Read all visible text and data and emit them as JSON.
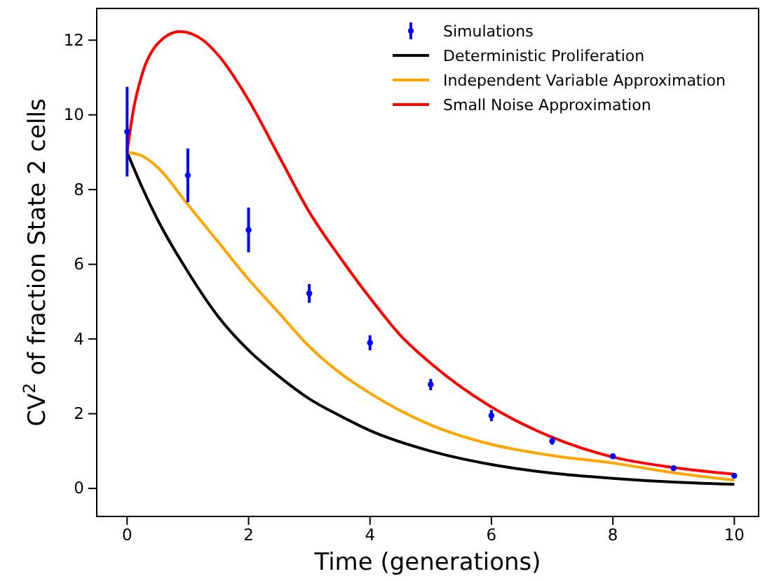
{
  "chart_data": {
    "type": "line",
    "xlabel": "Time (generations)",
    "ylabel": "CV$^{2}$ of fraction State 2 cells",
    "xlim": [
      -0.5,
      10.4
    ],
    "ylim": [
      -0.75,
      12.85
    ],
    "xticks": [
      0,
      2,
      4,
      6,
      8,
      10
    ],
    "yticks": [
      0,
      2,
      4,
      6,
      8,
      10,
      12
    ],
    "grid": false,
    "legend": "top right",
    "series": [
      {
        "name": "Simulations",
        "type": "scatter",
        "marker": "circle",
        "color": "#0000ff",
        "x": [
          0,
          1,
          2,
          3,
          4,
          5,
          6,
          7,
          8,
          9,
          10
        ],
        "values": [
          9.55,
          8.38,
          6.92,
          5.22,
          3.9,
          2.78,
          1.95,
          1.27,
          0.86,
          0.54,
          0.34
        ],
        "errors": [
          1.2,
          0.72,
          0.6,
          0.25,
          0.2,
          0.15,
          0.15,
          0.1,
          0.07,
          0.05,
          0.05
        ]
      },
      {
        "name": "Deterministic Proliferation",
        "marker": "none",
        "color": "#000000",
        "x": [
          0,
          0.25,
          0.5,
          1,
          1.5,
          2,
          2.5,
          3,
          3.5,
          4,
          5,
          6,
          7,
          8,
          9,
          10
        ],
        "values": [
          9,
          8.05,
          7.2,
          5.8,
          4.6,
          3.7,
          3.0,
          2.4,
          1.95,
          1.55,
          1.0,
          0.64,
          0.41,
          0.27,
          0.17,
          0.11
        ]
      },
      {
        "name": "Independent Variable Approximation",
        "marker": "none",
        "color": "#ffa500",
        "x": [
          0,
          0.25,
          0.5,
          1,
          1.5,
          2,
          2.5,
          3,
          3.5,
          4,
          5,
          6,
          7,
          8,
          9,
          10
        ],
        "values": [
          9,
          8.9,
          8.6,
          7.6,
          6.6,
          5.6,
          4.7,
          3.8,
          3.1,
          2.55,
          1.7,
          1.18,
          0.88,
          0.68,
          0.42,
          0.22
        ]
      },
      {
        "name": "Small Noise Approximation",
        "marker": "none",
        "color": "#ff0000",
        "x": [
          0,
          0.1,
          0.25,
          0.5,
          0.87,
          1.25,
          1.5,
          2,
          2.5,
          3,
          3.5,
          4,
          4.5,
          5,
          6,
          7,
          8,
          9,
          10
        ],
        "values": [
          9,
          10.1,
          11.1,
          11.9,
          12.23,
          12.0,
          11.6,
          10.4,
          8.9,
          7.4,
          6.2,
          5.1,
          4.1,
          3.35,
          2.18,
          1.37,
          0.84,
          0.56,
          0.38
        ]
      }
    ]
  }
}
